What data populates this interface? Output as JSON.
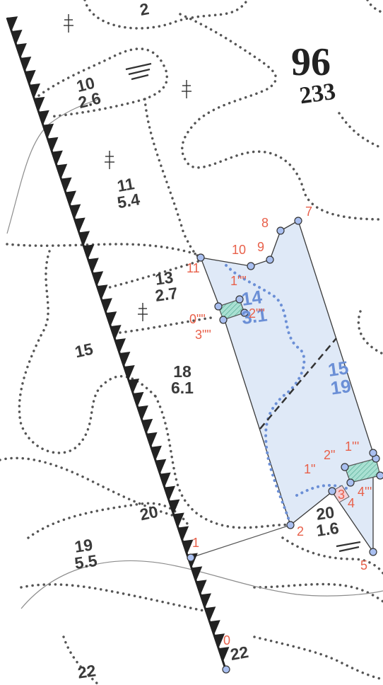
{
  "colors": {
    "parcel_fill": "#dfe9f7",
    "parcel_stroke": "#3a3a3a",
    "vertex_labels": "#e8604a",
    "plot_text_blue": "#6b8fd6",
    "boundary_dots": "#555555",
    "hatched_fill": "#7fcfbf"
  },
  "block": {
    "number": "96",
    "area": "233"
  },
  "plots": [
    {
      "number": "10",
      "area": "2.6"
    },
    {
      "number": "11",
      "area": "5.4"
    },
    {
      "number": "13",
      "area": "2.7"
    },
    {
      "number": "15",
      "area": ""
    },
    {
      "number": "18",
      "area": "6.1"
    },
    {
      "number": "20",
      "area": ""
    },
    {
      "number": "19",
      "area": "5.5"
    },
    {
      "number": "20",
      "area": "1.6"
    },
    {
      "number": "22",
      "area": ""
    },
    {
      "number": "22",
      "area": ""
    },
    {
      "number": "2",
      "area": ""
    }
  ],
  "parcel_plots": [
    {
      "number": "14",
      "area": "3.1"
    },
    {
      "number": "15",
      "area": "19"
    }
  ],
  "vertices": [
    "0",
    "1",
    "2",
    "5",
    "7",
    "8",
    "9",
    "10",
    "11"
  ],
  "inner_vertices": [
    "1\"\"",
    "2\"\"",
    "0\"\"",
    "3\"\"",
    "1\"",
    "2\"",
    "1'''",
    "3",
    "4",
    "4'''"
  ],
  "symbols": [
    "tree-icon",
    "tree-icon",
    "tree-icon",
    "tree-icon",
    "swamp-icon",
    "swamp-icon"
  ]
}
